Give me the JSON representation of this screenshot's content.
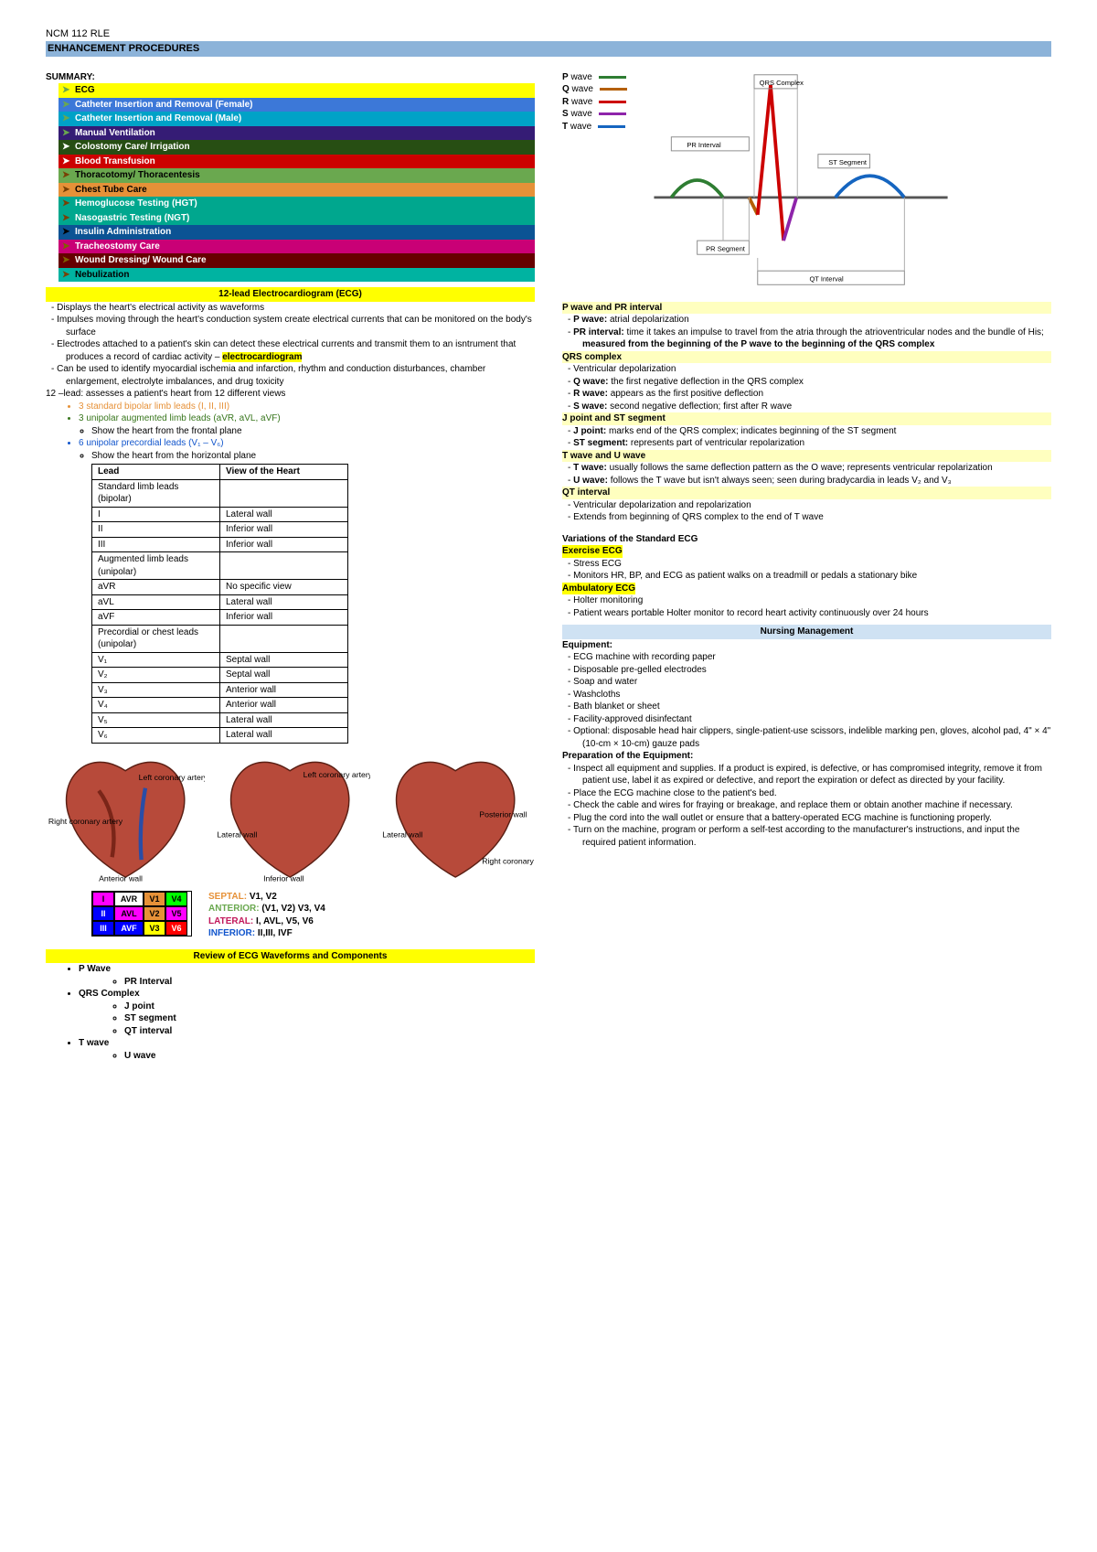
{
  "header": {
    "course": "NCM 112 RLE",
    "title": "ENHANCEMENT PROCEDURES"
  },
  "summary": {
    "label": "SUMMARY:",
    "items": [
      {
        "text": "ECG",
        "bg": "#ffff00",
        "fg": "#000000",
        "arrow": "#6aa84f"
      },
      {
        "text": "Catheter Insertion and Removal (Female)",
        "bg": "#3c78d8",
        "fg": "#ffffff",
        "arrow": "#6aa84f"
      },
      {
        "text": "Catheter Insertion and Removal (Male)",
        "bg": "#00a2c7",
        "fg": "#ffffff",
        "arrow": "#6aa84f"
      },
      {
        "text": "Manual Ventilation",
        "bg": "#351c75",
        "fg": "#ffffff",
        "arrow": "#6aa84f"
      },
      {
        "text": "Colostomy Care/ Irrigation",
        "bg": "#274e13",
        "fg": "#ffffff",
        "arrow": "#ffffff"
      },
      {
        "text": "Blood Transfusion",
        "bg": "#cc0000",
        "fg": "#ffffff",
        "arrow": "#ffffff"
      },
      {
        "text": "Thoracotomy/ Thoracentesis",
        "bg": "#6aa84f",
        "fg": "#000000",
        "arrow": "#783f04"
      },
      {
        "text": "Chest Tube Care",
        "bg": "#e69138",
        "fg": "#000000",
        "arrow": "#783f04"
      },
      {
        "text": "Hemoglucose Testing (HGT)",
        "bg": "#00a78e",
        "fg": "#ffffff",
        "arrow": "#783f04"
      },
      {
        "text": "Nasogastric Testing (NGT)",
        "bg": "#00a78e",
        "fg": "#ffffff",
        "arrow": "#783f04"
      },
      {
        "text": "Insulin Administration",
        "bg": "#0b5394",
        "fg": "#ffffff",
        "arrow": "#000000"
      },
      {
        "text": "Tracheostomy Care",
        "bg": "#c90076",
        "fg": "#ffffff",
        "arrow": "#7f6000"
      },
      {
        "text": "Wound Dressing/ Wound Care",
        "bg": "#660000",
        "fg": "#ffffff",
        "arrow": "#7f6000"
      },
      {
        "text": "Nebulization",
        "bg": "#00b3a1",
        "fg": "#000000",
        "arrow": "#783f04"
      }
    ]
  },
  "ecg_section": {
    "head": "12-lead Electrocardiogram (ECG)",
    "dashes": [
      "Displays the heart's electrical activity as waveforms",
      "Impulses moving through the heart's conduction system create electrical currents that can be monitored on the body's surface",
      "Electrodes attached to a patient's skin can detect these electrical currents and transmit them to an isntrument that produces a record of cardiac activity – ",
      "Can be used to identify myocardial ischemia and infarction, rhythm and conduction disturbances, chamber enlargement, electrolyte imbalances, and drug toxicity"
    ],
    "hl_word": "electrocardiogram",
    "twelve_lead_line": "12 –lead: assesses a patient's heart from 12 different views",
    "bipolar": "3 standard bipolar limb leads (I, II, III)",
    "augmented": "3 unipolar augmented limb leads (aVR, aVL, aVF)",
    "aug_sub": "Show the heart from the frontal plane",
    "precordial": "6 unipolar precordial leads (V₁ – V₆)",
    "prec_sub": "Show the heart from the horizontal plane"
  },
  "lead_table": {
    "h1": "Lead",
    "h2": "View of the Heart",
    "rows": [
      [
        "Standard limb leads (bipolar)",
        ""
      ],
      [
        "I",
        "Lateral wall"
      ],
      [
        "II",
        "Inferior wall"
      ],
      [
        "III",
        "Inferior wall"
      ],
      [
        "Augmented limb leads (unipolar)",
        ""
      ],
      [
        "aVR",
        "No specific view"
      ],
      [
        "aVL",
        "Lateral wall"
      ],
      [
        "aVF",
        "Inferior wall"
      ],
      [
        "Precordial or chest leads (unipolar)",
        ""
      ],
      [
        "V₁",
        "Septal wall"
      ],
      [
        "V₂",
        "Septal wall"
      ],
      [
        "V₃",
        "Anterior wall"
      ],
      [
        "V₄",
        "Anterior wall"
      ],
      [
        "V₅",
        "Lateral wall"
      ],
      [
        "V₆",
        "Lateral wall"
      ]
    ]
  },
  "heart_labels": {
    "left_cor": "Left coronary artery",
    "right_cor": "Right coronary artery",
    "ant_wall": "Anterior wall",
    "lat_wall": "Lateral wall",
    "inf_wall": "Inferior wall",
    "post_wall": "Posterior wall"
  },
  "mini_grid": {
    "cells": [
      {
        "t": "I",
        "bg": "#ff00ff"
      },
      {
        "t": "AVR",
        "bg": "#ffffff"
      },
      {
        "t": "V1",
        "bg": "#e69138"
      },
      {
        "t": "V4",
        "bg": "#00ff00"
      },
      {
        "t": "II",
        "bg": "#0000ff",
        "fg": "#fff"
      },
      {
        "t": "AVL",
        "bg": "#ff00ff"
      },
      {
        "t": "V2",
        "bg": "#e69138"
      },
      {
        "t": "V5",
        "bg": "#ff00ff"
      },
      {
        "t": "III",
        "bg": "#0000ff",
        "fg": "#fff"
      },
      {
        "t": "AVF",
        "bg": "#0000ff",
        "fg": "#fff"
      },
      {
        "t": "V3",
        "bg": "#ffff00"
      },
      {
        "t": "V6",
        "bg": "#ff0000",
        "fg": "#fff"
      }
    ],
    "legend": [
      {
        "label": "SEPTAL:",
        "val": " V1, V2",
        "c": "#e69138"
      },
      {
        "label": "ANTERIOR:",
        "val": " (V1, V2) V3, V4",
        "c": "#6aa84f"
      },
      {
        "label": "LATERAL:",
        "val": " I, AVL, V5, V6",
        "c": "#c2185b"
      },
      {
        "label": "INFERIOR:",
        "val": " II,III, IVF",
        "c": "#1155cc"
      }
    ]
  },
  "review": {
    "head": "Review of ECG Waveforms and Components",
    "items": {
      "p": "P Wave",
      "pr": "PR Interval",
      "qrs": "QRS Complex",
      "j": "J point",
      "st": "ST segment",
      "qt": "QT interval",
      "t": "T wave",
      "u": "U wave"
    }
  },
  "wave_legend": {
    "items": [
      {
        "label": "P",
        "name": "wave",
        "color": "#2e7d32"
      },
      {
        "label": "Q",
        "name": "wave",
        "color": "#b45f06"
      },
      {
        "label": "R",
        "name": "wave",
        "color": "#cc0000"
      },
      {
        "label": "S",
        "name": "wave",
        "color": "#8e24aa"
      },
      {
        "label": "T",
        "name": "wave",
        "color": "#1565c0"
      }
    ],
    "boxes": {
      "qrs": "QRS Complex",
      "pr_int": "PR Interval",
      "st_seg": "ST Segment",
      "pr_seg": "PR Segment",
      "qt_int": "QT Interval"
    }
  },
  "right_sections": {
    "pwave": {
      "head": "P wave and PR interval",
      "lines": {
        "p": "atrial depolarization",
        "pr_a": "time it takes an impulse to travel from the atria through the atrioventricular nodes and the bundle of His; ",
        "pr_b": "measured from the beginning of the P wave to the beginning of the QRS complex"
      }
    },
    "qrs": {
      "head": "QRS complex",
      "v": "Ventricular depolarization",
      "q": "the first negative deflection in the QRS complex",
      "r": "appears as the first positive deflection",
      "s": "second negative deflection; first after R wave"
    },
    "jst": {
      "head": "J point and ST segment",
      "j": "marks end of the QRS complex; indicates beginning of the ST segment",
      "st": "represents part of ventricular repolarization"
    },
    "tu": {
      "head": "T wave and U wave",
      "t": "usually follows the same deflection pattern as the O wave; represents ventricular repolarization",
      "u": "follows the T wave but isn't always seen; seen during bradycardia in leads V₂ and V₃"
    },
    "qt": {
      "head": "QT interval",
      "a": "Ventricular depolarization and repolarization",
      "b": "Extends from beginning of QRS complex to the end of T wave"
    },
    "var": {
      "head": "Variations of the Standard ECG",
      "ex_head": "Exercise ECG",
      "ex_a": "Stress ECG",
      "ex_b": "Monitors HR, BP, and ECG as patient walks on a treadmill or pedals a stationary bike",
      "amb_head": "Ambulatory ECG",
      "amb_a": "Holter monitoring",
      "amb_b": "Patient wears portable Holter monitor to record heart activity continuously over 24 hours"
    },
    "nursing": {
      "head": "Nursing Management",
      "equip_label": "Equipment:",
      "equip": [
        "ECG machine with recording paper",
        "Disposable pre-gelled electrodes",
        "Soap and water",
        "Washcloths",
        "Bath blanket or sheet",
        "Facility-approved disinfectant",
        "Optional: disposable head hair clippers, single-patient-use scissors, indelible marking pen, gloves, alcohol pad, 4\" × 4\" (10-cm × 10-cm) gauze pads"
      ],
      "prep_label": "Preparation of the Equipment:",
      "prep": [
        "Inspect all equipment and supplies. If a product is expired, is defective, or has compromised integrity, remove it from patient use, label it as expired or defective, and report the expiration or defect as directed by your facility.",
        "Place the ECG machine close to the patient's bed.",
        "Check the cable and wires for fraying or breakage, and replace them or obtain another machine if necessary.",
        "Plug the cord into the wall outlet or ensure that a battery-operated ECG machine is functioning properly.",
        "Turn on the machine, program or perform a self-test according to the manufacturer's instructions, and input the required patient information."
      ]
    }
  }
}
